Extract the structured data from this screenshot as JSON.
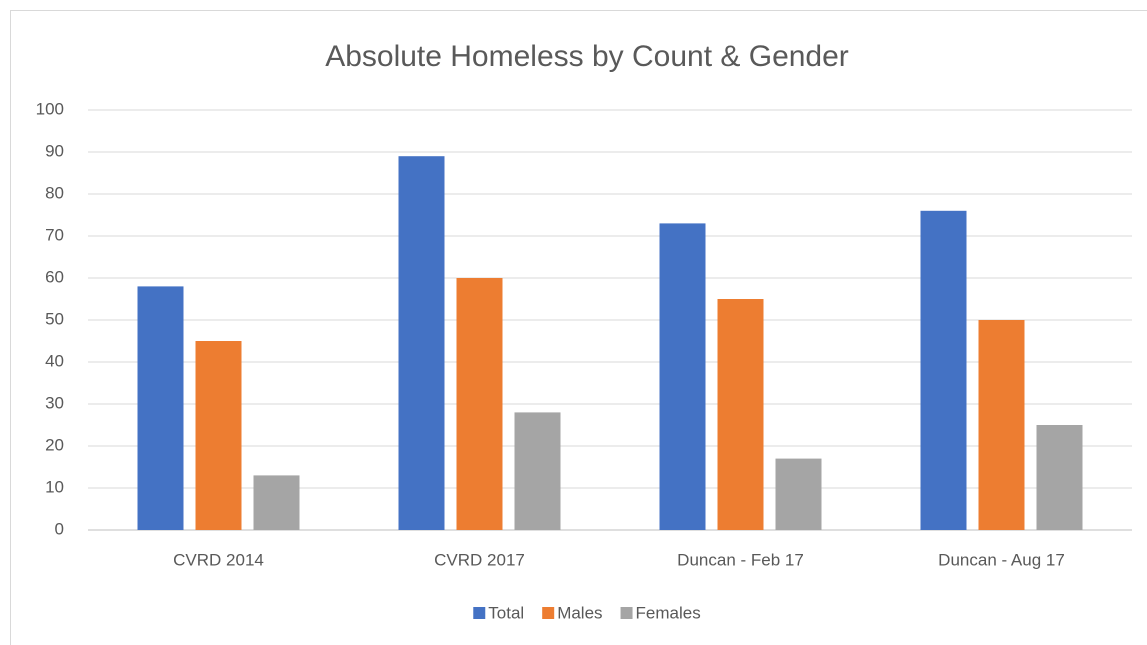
{
  "chart_data": {
    "type": "bar",
    "title": "Absolute Homeless by Count & Gender",
    "categories": [
      "CVRD 2014",
      "CVRD 2017",
      "Duncan - Feb 17",
      "Duncan - Aug 17"
    ],
    "series": [
      {
        "name": "Total",
        "color": "#4472c4",
        "values": [
          58,
          89,
          73,
          76
        ]
      },
      {
        "name": "Males",
        "color": "#ed7d31",
        "values": [
          45,
          60,
          55,
          50
        ]
      },
      {
        "name": "Females",
        "color": "#a5a5a5",
        "values": [
          13,
          28,
          17,
          25
        ]
      }
    ],
    "ylim": [
      0,
      100
    ],
    "yticks": [
      0,
      10,
      20,
      30,
      40,
      50,
      60,
      70,
      80,
      90,
      100
    ],
    "grid": true,
    "legend": "bottom"
  }
}
